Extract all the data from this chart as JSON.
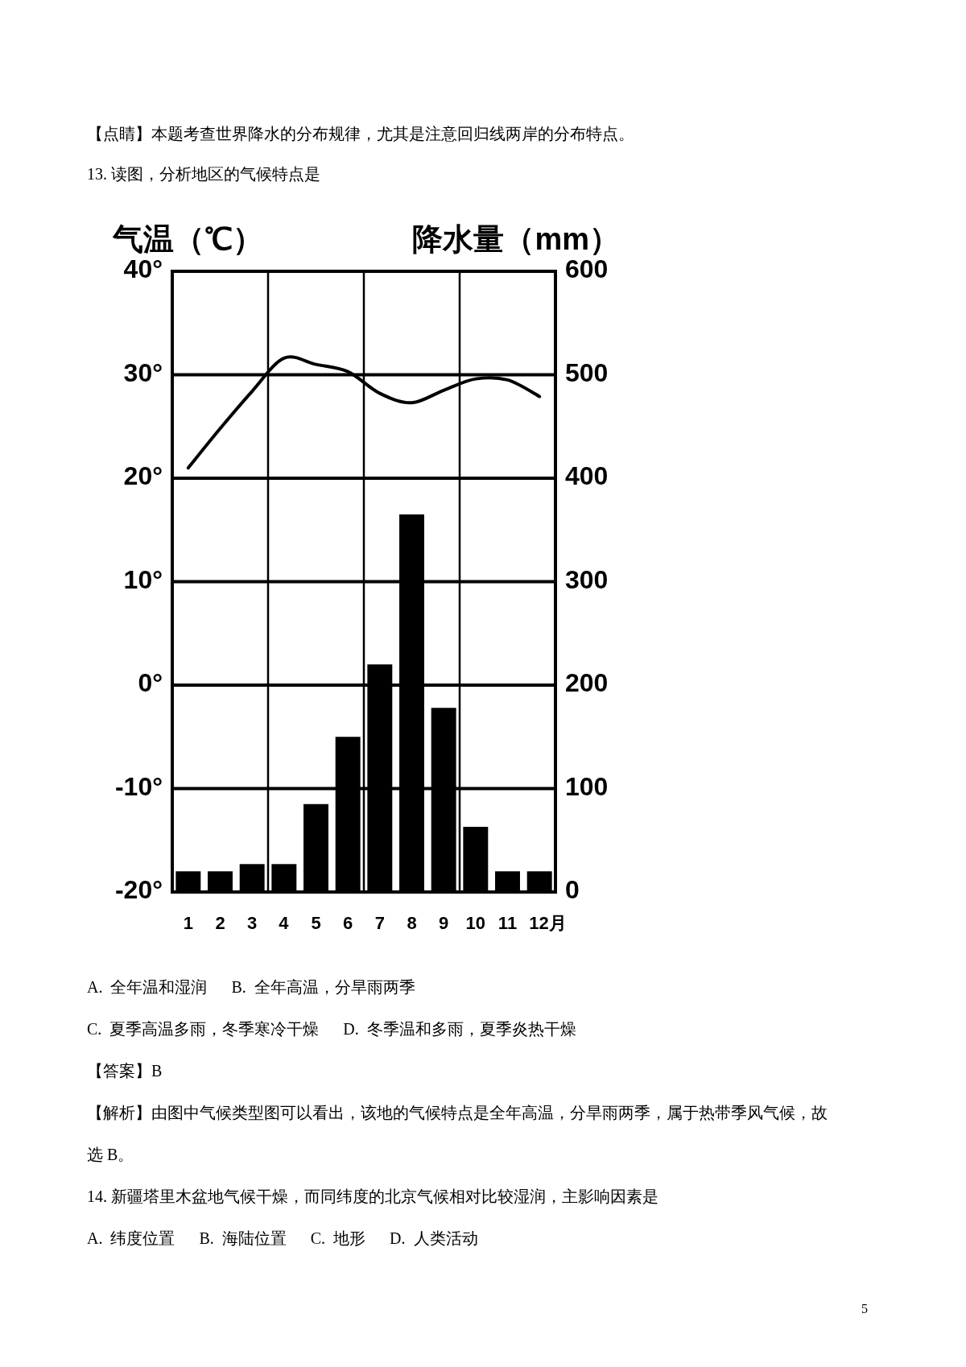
{
  "chart_data": {
    "type": "bar",
    "title": "13. 读图，分析地区的气候特点是",
    "ylabel": "气温（℃）",
    "y2label": "降水量（mm）",
    "categories": [
      "1",
      "2",
      "3",
      "4",
      "5",
      "6",
      "7",
      "8",
      "9",
      "10",
      "11",
      "12月"
    ],
    "series": [
      {
        "axis": "y2",
        "color": "#000000",
        "values": [
          20,
          20,
          27,
          27,
          85,
          150,
          220,
          365,
          178,
          63,
          20,
          20
        ]
      },
      {
        "type": "line",
        "axis": "y",
        "color": "#000000",
        "values": [
          21.0,
          24.8,
          28.4,
          31.6,
          31.0,
          30.3,
          28.2,
          27.3,
          28.5,
          29.6,
          29.5,
          27.9
        ]
      }
    ],
    "ylim": [
      -20,
      40
    ],
    "yticks": [
      {
        "value": 40,
        "label": "40°"
      },
      {
        "value": 30,
        "label": "30°"
      },
      {
        "value": 20,
        "label": "20°"
      },
      {
        "value": 10,
        "label": "10°"
      },
      {
        "value": 0,
        "label": "0°"
      },
      {
        "value": -10,
        "label": "-10°"
      },
      {
        "value": -20,
        "label": "-20°"
      }
    ],
    "y2lim": [
      0,
      600
    ],
    "y2ticks": [
      0,
      100,
      200,
      300,
      400,
      500,
      600
    ],
    "grid": true,
    "annotations": [
      "【点睛】本题考查世界降水的分布规律，尤其是注意回归线两岸的分布特点。",
      "A.  全年温和湿润      B.  全年高温，分旱雨两季",
      "C.  夏季高温多雨，冬季寒冷干燥      D.  冬季温和多雨，夏季炎热干燥",
      "【答案】B",
      "【解析】由图中气候类型图可以看出，该地的气候特点是全年高温，分旱雨两季，属于热带季风气候，故选 B。",
      "14. 新疆塔里木盆地气候干燥，而同纬度的北京气候相对比较湿润，主影响因素是",
      "A.  纬度位置      B.  海陆位置      C.  地形      D.  人类活动",
      "5"
    ]
  }
}
